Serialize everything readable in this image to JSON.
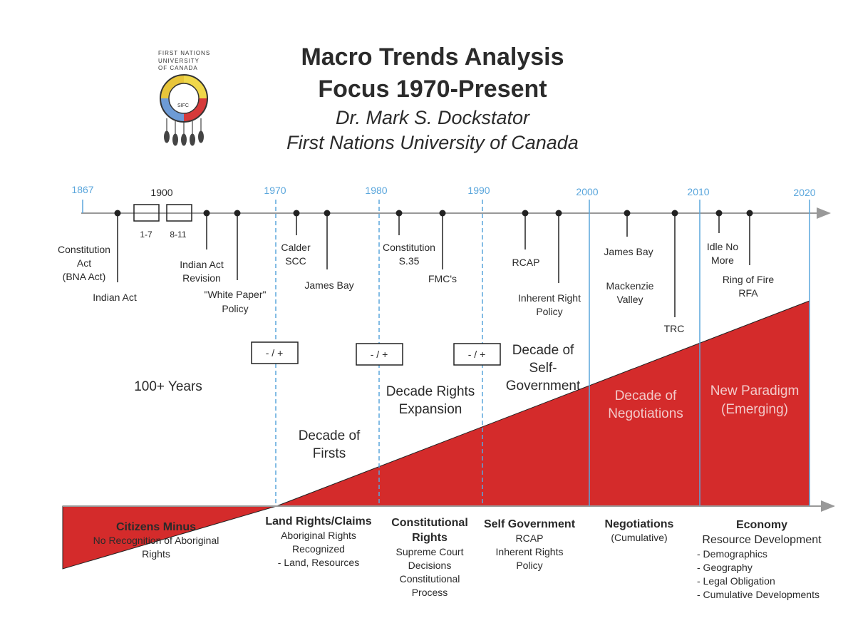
{
  "header": {
    "title1": "Macro Trends Analysis",
    "title2": "Focus 1970-Present",
    "author": "Dr. Mark S. Dockstator",
    "institution": "First Nations University of Canada"
  },
  "logo": {
    "line1": "FIRST NATIONS",
    "line2": "UNIVERSITY",
    "line3": "OF CANADA",
    "seal": "SIFC"
  },
  "years": [
    "1867",
    "1900",
    "1970",
    "1980",
    "1990",
    "2000",
    "2010",
    "2020"
  ],
  "boxes": {
    "range1": "1-7",
    "range2": "8-11",
    "marker": "- / +"
  },
  "events": {
    "constitution_act": [
      "Constitution",
      "Act",
      "(BNA Act)"
    ],
    "indian_act": "Indian Act",
    "indian_act_revision": [
      "Indian Act",
      "Revision"
    ],
    "white_paper": [
      "\"White Paper\"",
      "Policy"
    ],
    "calder": [
      "Calder",
      "SCC"
    ],
    "james_bay_1": "James Bay",
    "constitution_s35": [
      "Constitution",
      "S.35"
    ],
    "fmcs": "FMC's",
    "rcap": "RCAP",
    "inherent_right": [
      "Inherent Right",
      "Policy"
    ],
    "james_bay_2": "James Bay",
    "mackenzie": [
      "Mackenzie",
      "Valley"
    ],
    "trc": "TRC",
    "idle_no_more": [
      "Idle No",
      "More"
    ],
    "ring_of_fire": [
      "Ring of Fire",
      "RFA"
    ]
  },
  "decades": {
    "hundred_years": "100+ Years",
    "firsts": [
      "Decade of",
      "Firsts"
    ],
    "rights_expansion": [
      "Decade Rights",
      "Expansion"
    ],
    "self_gov": [
      "Decade of",
      "Self-",
      "Government"
    ],
    "negotiations": [
      "Decade of",
      "Negotiations"
    ],
    "paradigm": [
      "New Paradigm",
      "(Emerging)"
    ]
  },
  "phases": {
    "citizens_minus": {
      "title": "Citizens Minus",
      "lines": [
        "No Recognition of Aboriginal",
        "Rights"
      ]
    },
    "land_rights": {
      "title": "Land Rights/Claims",
      "lines": [
        "Aboriginal Rights",
        "Recognized",
        "- Land, Resources"
      ]
    },
    "constitutional": {
      "title": [
        "Constitutional",
        "Rights"
      ],
      "lines": [
        "Supreme Court",
        "Decisions",
        "Constitutional",
        "Process"
      ]
    },
    "self_government": {
      "title": "Self Government",
      "lines": [
        "RCAP",
        "Inherent Rights",
        "Policy"
      ]
    },
    "negotiations": {
      "title": "Negotiations",
      "lines": [
        "(Cumulative)"
      ]
    },
    "economy": {
      "title": "Economy",
      "sub": "Resource Development",
      "lines": [
        "- Demographics",
        "- Geography",
        "- Legal Obligation",
        "- Cumulative Developments"
      ]
    }
  },
  "colors": {
    "red": "#d42b2b",
    "blue": "#5aa6dc",
    "dark": "#222222"
  }
}
